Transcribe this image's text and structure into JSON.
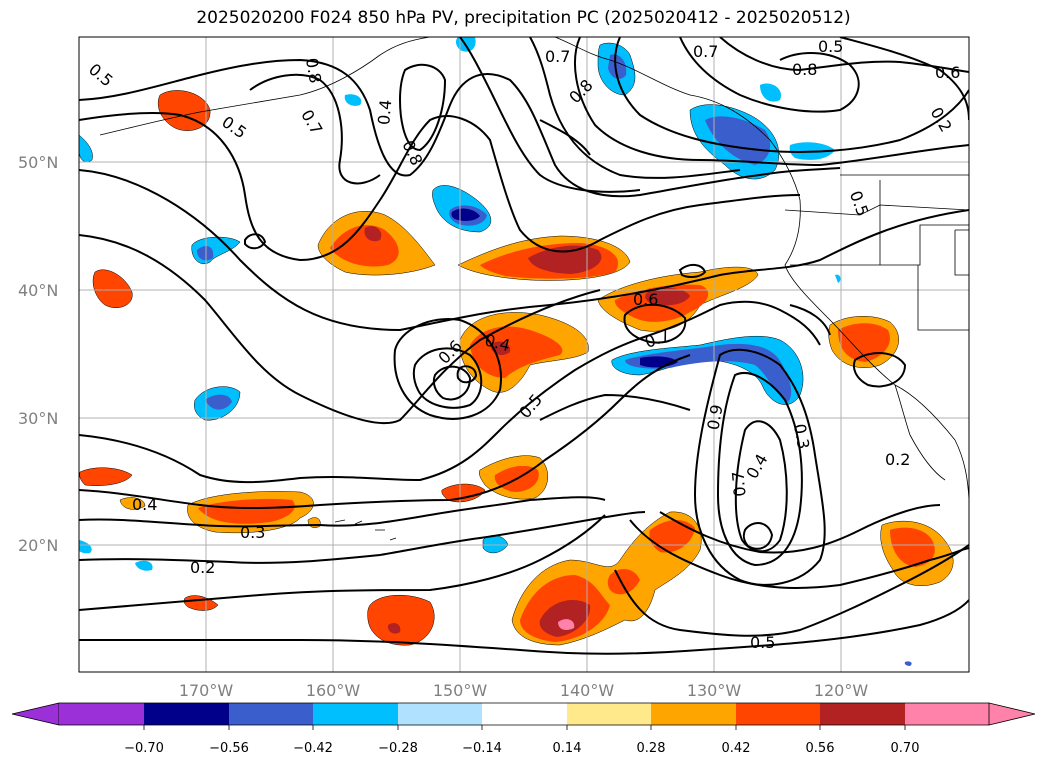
{
  "title": "2025020200 F024 850 hPa PV, precipitation PC (2025020412 - 2025020512)",
  "map": {
    "lat_labels": [
      "50°N",
      "40°N",
      "30°N",
      "20°N"
    ],
    "lon_labels": [
      "170°W",
      "160°W",
      "150°W",
      "140°W",
      "130°W",
      "120°W"
    ],
    "contour_labels": [
      "0.5",
      "0.8",
      "0.7",
      "0.5",
      "0.4",
      "0.8",
      "0.7",
      "0.8",
      "0.7",
      "0.5",
      "0.8",
      "0.6",
      "0.2",
      "0.5",
      "0.6",
      "0.7",
      "0.6",
      "0.4",
      "0.5",
      "0.9",
      "0.7",
      "0.4",
      "0.3",
      "0.2",
      "0.4",
      "0.3",
      "0.2",
      "0.5"
    ]
  },
  "colorbar": {
    "ticks": [
      "−0.70",
      "−0.56",
      "−0.42",
      "−0.28",
      "−0.14",
      "0.14",
      "0.28",
      "0.42",
      "0.56",
      "0.70"
    ],
    "colors": {
      "neg_extend": "#9b30d9",
      "neg4": "#00008b",
      "neg3": "#3a5fcd",
      "neg2": "#00bfff",
      "neg1": "#b0e2ff",
      "zero": "#ffffff",
      "pos1": "#ffe98a",
      "pos2": "#ffa500",
      "pos3": "#ff4500",
      "pos4": "#b22222",
      "pos_extend": "#ff82ab"
    }
  }
}
